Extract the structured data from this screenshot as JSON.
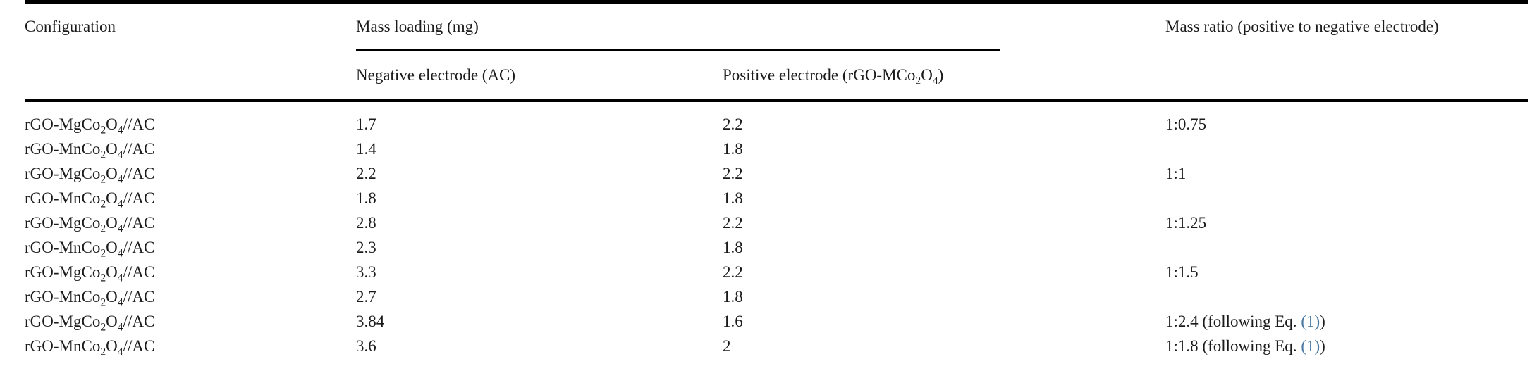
{
  "colors": {
    "text": "#1b1b1b",
    "rule": "#000000",
    "link": "#4878a2"
  },
  "table": {
    "headers": {
      "configuration": "Configuration",
      "mass_loading_group": "Mass loading (mg)",
      "negative_electrode": "Negative electrode (AC)",
      "positive_electrode_parts": [
        {
          "t": "Positive electrode (rGO-MCo"
        },
        {
          "sub": "2"
        },
        {
          "t": "O"
        },
        {
          "sub": "4"
        },
        {
          "t": ")"
        }
      ],
      "mass_ratio": "Mass ratio (positive to negative electrode)"
    },
    "rows": [
      {
        "configuration_parts": [
          {
            "t": "rGO-MgCo"
          },
          {
            "sub": "2"
          },
          {
            "t": "O"
          },
          {
            "sub": "4"
          },
          {
            "t": "//AC"
          }
        ],
        "negative": "1.7",
        "positive": "2.2",
        "ratio_parts": [
          {
            "t": "1:0.75"
          }
        ]
      },
      {
        "configuration_parts": [
          {
            "t": "rGO-MnCo"
          },
          {
            "sub": "2"
          },
          {
            "t": "O"
          },
          {
            "sub": "4"
          },
          {
            "t": "//AC"
          }
        ],
        "negative": "1.4",
        "positive": "1.8",
        "ratio_parts": []
      },
      {
        "configuration_parts": [
          {
            "t": "rGO-MgCo"
          },
          {
            "sub": "2"
          },
          {
            "t": "O"
          },
          {
            "sub": "4"
          },
          {
            "t": "//AC"
          }
        ],
        "negative": "2.2",
        "positive": "2.2",
        "ratio_parts": [
          {
            "t": "1:1"
          }
        ]
      },
      {
        "configuration_parts": [
          {
            "t": "rGO-MnCo"
          },
          {
            "sub": "2"
          },
          {
            "t": "O"
          },
          {
            "sub": "4"
          },
          {
            "t": "//AC"
          }
        ],
        "negative": "1.8",
        "positive": "1.8",
        "ratio_parts": []
      },
      {
        "configuration_parts": [
          {
            "t": "rGO-MgCo"
          },
          {
            "sub": "2"
          },
          {
            "t": "O"
          },
          {
            "sub": "4"
          },
          {
            "t": "//AC"
          }
        ],
        "negative": "2.8",
        "positive": "2.2",
        "ratio_parts": [
          {
            "t": "1:1.25"
          }
        ]
      },
      {
        "configuration_parts": [
          {
            "t": "rGO-MnCo"
          },
          {
            "sub": "2"
          },
          {
            "t": "O"
          },
          {
            "sub": "4"
          },
          {
            "t": "//AC"
          }
        ],
        "negative": "2.3",
        "positive": "1.8",
        "ratio_parts": []
      },
      {
        "configuration_parts": [
          {
            "t": "rGO-MgCo"
          },
          {
            "sub": "2"
          },
          {
            "t": "O"
          },
          {
            "sub": "4"
          },
          {
            "t": "//AC"
          }
        ],
        "negative": "3.3",
        "positive": "2.2",
        "ratio_parts": [
          {
            "t": "1:1.5"
          }
        ]
      },
      {
        "configuration_parts": [
          {
            "t": "rGO-MnCo"
          },
          {
            "sub": "2"
          },
          {
            "t": "O"
          },
          {
            "sub": "4"
          },
          {
            "t": "//AC"
          }
        ],
        "negative": "2.7",
        "positive": "1.8",
        "ratio_parts": []
      },
      {
        "configuration_parts": [
          {
            "t": "rGO-MgCo"
          },
          {
            "sub": "2"
          },
          {
            "t": "O"
          },
          {
            "sub": "4"
          },
          {
            "t": "//AC"
          }
        ],
        "negative": "3.84",
        "positive": "1.6",
        "ratio_parts": [
          {
            "t": "1:2.4 (following Eq. "
          },
          {
            "link": "(1)"
          },
          {
            "t": ")"
          }
        ]
      },
      {
        "configuration_parts": [
          {
            "t": "rGO-MnCo"
          },
          {
            "sub": "2"
          },
          {
            "t": "O"
          },
          {
            "sub": "4"
          },
          {
            "t": "//AC"
          }
        ],
        "negative": "3.6",
        "positive": "2",
        "ratio_parts": [
          {
            "t": "1:1.8 (following Eq. "
          },
          {
            "link": "(1)"
          },
          {
            "t": ")"
          }
        ]
      }
    ]
  }
}
